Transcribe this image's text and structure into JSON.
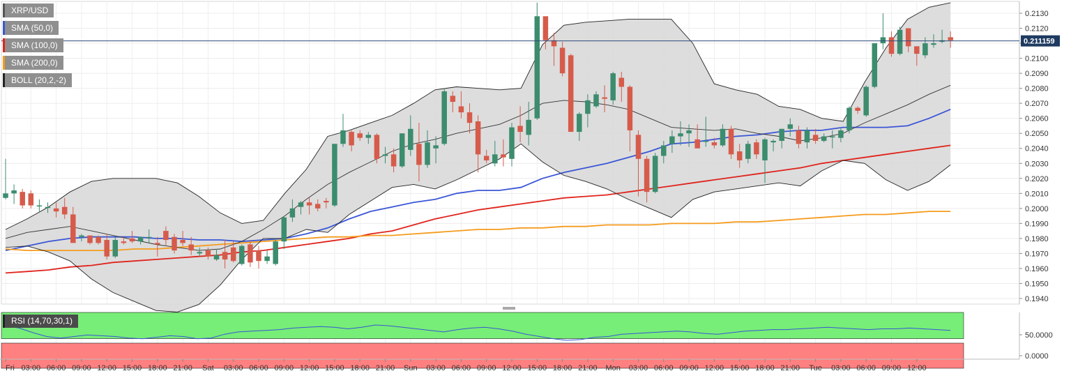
{
  "chart_data": [
    {
      "type": "candlestick",
      "title": "XRP/USD",
      "legend": [
        {
          "label": "XRP/USD",
          "color": "#555555"
        },
        {
          "label": "SMA (50,0)",
          "color": "#3a56d6"
        },
        {
          "label": "SMA (100,0)",
          "color": "#e0231c"
        },
        {
          "label": "SMA (200,0)",
          "color": "#f59b1d"
        },
        {
          "label": "BOLL (20,2,-2)",
          "color": "#222222"
        }
      ],
      "colors": {
        "up": "#3c8c6e",
        "down": "#d65b4a",
        "band_fill": "#d9d9d9"
      },
      "last_price": "0.211159",
      "ylim": [
        0.1935,
        0.2137
      ],
      "y_ticks": [
        "0.2130",
        "0.2120",
        "0.2110",
        "0.2100",
        "0.2090",
        "0.2080",
        "0.2070",
        "0.2060",
        "0.2050",
        "0.2040",
        "0.2030",
        "0.2020",
        "0.2010",
        "0.2000",
        "0.1990",
        "0.1980",
        "0.1970",
        "0.1960",
        "0.1950",
        "0.1940"
      ],
      "x_labels": [
        "Fri",
        "03:00",
        "06:00",
        "09:00",
        "12:00",
        "15:00",
        "18:00",
        "21:00",
        "Sat",
        "03:00",
        "06:00",
        "09:00",
        "12:00",
        "15:00",
        "18:00",
        "21:00",
        "Sun",
        "03:00",
        "06:00",
        "09:00",
        "12:00",
        "15:00",
        "18:00",
        "21:00",
        "Mon",
        "03:00",
        "06:00",
        "09:00",
        "12:00",
        "15:00",
        "18:00",
        "21:00",
        "Tue",
        "03:00",
        "06:00",
        "09:00",
        "12:00"
      ],
      "time_hours_per_label": 3,
      "candles_ohlc": [
        [
          0.2007,
          0.2033,
          0.2006,
          0.201
        ],
        [
          0.201,
          0.2016,
          0.2003,
          0.2012
        ],
        [
          0.2011,
          0.2013,
          0.2,
          0.2002
        ],
        [
          0.201,
          0.2012,
          0.2,
          0.2002
        ],
        [
          0.2002,
          0.2006,
          0.1998,
          0.2002
        ],
        [
          0.2001,
          0.2004,
          0.1997,
          0.2001
        ],
        [
          0.2,
          0.2004,
          0.1994,
          0.1998
        ],
        [
          0.2001,
          0.2007,
          0.1993,
          0.1996
        ],
        [
          0.1996,
          0.2001,
          0.1983,
          0.1977
        ],
        [
          0.1981,
          0.1983,
          0.1978,
          0.1982
        ],
        [
          0.1982,
          0.1982,
          0.1976,
          0.1977
        ],
        [
          0.1981,
          0.1982,
          0.1976,
          0.1977
        ],
        [
          0.1979,
          0.1983,
          0.1966,
          0.1968
        ],
        [
          0.1968,
          0.1981,
          0.1967,
          0.1979
        ],
        [
          0.1978,
          0.1981,
          0.1976,
          0.1977
        ],
        [
          0.198,
          0.1985,
          0.1977,
          0.1978
        ],
        [
          0.1978,
          0.198,
          0.1976,
          0.1981
        ],
        [
          0.1981,
          0.1986,
          0.1977,
          0.1981
        ],
        [
          0.1977,
          0.1981,
          0.1968,
          0.1976
        ],
        [
          0.1985,
          0.1988,
          0.1975,
          0.1979
        ],
        [
          0.1981,
          0.1983,
          0.197,
          0.1972
        ],
        [
          0.1979,
          0.1985,
          0.1975,
          0.1977
        ],
        [
          0.1976,
          0.1981,
          0.1969,
          0.1972
        ],
        [
          0.197,
          0.1974,
          0.1968,
          0.1971
        ],
        [
          0.1972,
          0.1974,
          0.1966,
          0.1968
        ],
        [
          0.1966,
          0.1973,
          0.1965,
          0.1969
        ],
        [
          0.1971,
          0.1979,
          0.196,
          0.1966
        ],
        [
          0.1974,
          0.1978,
          0.1964,
          0.1965
        ],
        [
          0.1963,
          0.1976,
          0.1962,
          0.1975
        ],
        [
          0.1976,
          0.1979,
          0.1961,
          0.1964
        ],
        [
          0.1972,
          0.1975,
          0.196,
          0.1965
        ],
        [
          0.1965,
          0.1972,
          0.1963,
          0.1968
        ],
        [
          0.1963,
          0.198,
          0.1962,
          0.1978
        ],
        [
          0.1978,
          0.1995,
          0.1973,
          0.1994
        ],
        [
          0.1994,
          0.2006,
          0.1991,
          0.2
        ],
        [
          0.2001,
          0.2005,
          0.1996,
          0.2004
        ],
        [
          0.2004,
          0.2007,
          0.1996,
          0.2002
        ],
        [
          0.2003,
          0.2006,
          0.1998,
          0.2
        ],
        [
          0.2005,
          0.2007,
          0.2,
          0.2004
        ],
        [
          0.2002,
          0.2043,
          0.2001,
          0.2043
        ],
        [
          0.2043,
          0.2063,
          0.2041,
          0.2052
        ],
        [
          0.2051,
          0.2052,
          0.2038,
          0.2042
        ],
        [
          0.205,
          0.2052,
          0.2045,
          0.2047
        ],
        [
          0.2047,
          0.2051,
          0.2043,
          0.2049
        ],
        [
          0.2049,
          0.205,
          0.203,
          0.2033
        ],
        [
          0.2035,
          0.2041,
          0.203,
          0.2036
        ],
        [
          0.2036,
          0.204,
          0.2024,
          0.2028
        ],
        [
          0.2028,
          0.205,
          0.2027,
          0.205
        ],
        [
          0.2039,
          0.2062,
          0.2035,
          0.2053
        ],
        [
          0.2043,
          0.2057,
          0.2018,
          0.2029
        ],
        [
          0.2029,
          0.2052,
          0.2027,
          0.2044
        ],
        [
          0.204,
          0.2048,
          0.203,
          0.2042
        ],
        [
          0.2043,
          0.208,
          0.2042,
          0.2078
        ],
        [
          0.2075,
          0.2078,
          0.2064,
          0.2071
        ],
        [
          0.2068,
          0.2078,
          0.206,
          0.2064
        ],
        [
          0.2064,
          0.207,
          0.205,
          0.2057
        ],
        [
          0.2058,
          0.2062,
          0.2024,
          0.2036
        ],
        [
          0.2035,
          0.2039,
          0.203,
          0.2032
        ],
        [
          0.203,
          0.2045,
          0.2028,
          0.2036
        ],
        [
          0.2036,
          0.2046,
          0.2028,
          0.2034
        ],
        [
          0.2033,
          0.2057,
          0.2028,
          0.2054
        ],
        [
          0.2055,
          0.2068,
          0.2044,
          0.2051
        ],
        [
          0.2049,
          0.2071,
          0.2042,
          0.2059
        ],
        [
          0.206,
          0.2137,
          0.2059,
          0.2128
        ],
        [
          0.2128,
          0.2128,
          0.2106,
          0.2112
        ],
        [
          0.2112,
          0.2117,
          0.2095,
          0.2108
        ],
        [
          0.2107,
          0.2111,
          0.2088,
          0.209
        ],
        [
          0.2102,
          0.2103,
          0.2051,
          0.2051
        ],
        [
          0.2051,
          0.2064,
          0.2045,
          0.2063
        ],
        [
          0.2063,
          0.2076,
          0.2054,
          0.2072
        ],
        [
          0.2068,
          0.2078,
          0.2067,
          0.2076
        ],
        [
          0.2074,
          0.2082,
          0.2064,
          0.2073
        ],
        [
          0.2072,
          0.2091,
          0.2069,
          0.209
        ],
        [
          0.2087,
          0.2091,
          0.2071,
          0.2081
        ],
        [
          0.2081,
          0.2082,
          0.2038,
          0.2052
        ],
        [
          0.2049,
          0.2052,
          0.2008,
          0.2033
        ],
        [
          0.2033,
          0.2035,
          0.2004,
          0.2011
        ],
        [
          0.2011,
          0.2037,
          0.201,
          0.2035
        ],
        [
          0.2035,
          0.2045,
          0.203,
          0.2042
        ],
        [
          0.2043,
          0.2052,
          0.2037,
          0.2048
        ],
        [
          0.2048,
          0.2058,
          0.2042,
          0.205
        ],
        [
          0.205,
          0.2056,
          0.2041,
          0.2052
        ],
        [
          0.2046,
          0.2056,
          0.204,
          0.204
        ],
        [
          0.2045,
          0.2061,
          0.2041,
          0.2045
        ],
        [
          0.2044,
          0.2047,
          0.204,
          0.2042
        ],
        [
          0.2042,
          0.2056,
          0.2041,
          0.2053
        ],
        [
          0.2053,
          0.2055,
          0.2033,
          0.2036
        ],
        [
          0.2038,
          0.2043,
          0.2027,
          0.2032
        ],
        [
          0.2033,
          0.2045,
          0.203,
          0.2043
        ],
        [
          0.2044,
          0.2046,
          0.2033,
          0.2036
        ],
        [
          0.2032,
          0.2047,
          0.2017,
          0.2046
        ],
        [
          0.2044,
          0.2046,
          0.2038,
          0.2045
        ],
        [
          0.2045,
          0.2053,
          0.204,
          0.2053
        ],
        [
          0.2053,
          0.206,
          0.2048,
          0.2056
        ],
        [
          0.2052,
          0.2055,
          0.204,
          0.2043
        ],
        [
          0.2044,
          0.2054,
          0.204,
          0.2052
        ],
        [
          0.2049,
          0.2053,
          0.2043,
          0.2045
        ],
        [
          0.2045,
          0.205,
          0.2044,
          0.2048
        ],
        [
          0.2048,
          0.2052,
          0.204,
          0.2048
        ],
        [
          0.2047,
          0.2054,
          0.2044,
          0.2052
        ],
        [
          0.2052,
          0.2068,
          0.205,
          0.2067
        ],
        [
          0.2067,
          0.2068,
          0.2063,
          0.2065
        ],
        [
          0.2062,
          0.2082,
          0.2061,
          0.2081
        ],
        [
          0.2081,
          0.211,
          0.208,
          0.211
        ],
        [
          0.211,
          0.213,
          0.2106,
          0.2114
        ],
        [
          0.2114,
          0.2118,
          0.2101,
          0.2103
        ],
        [
          0.2103,
          0.2121,
          0.2102,
          0.2119
        ],
        [
          0.212,
          0.212,
          0.2104,
          0.2108
        ],
        [
          0.2108,
          0.2108,
          0.2095,
          0.2103
        ],
        [
          0.2102,
          0.2114,
          0.21,
          0.211
        ],
        [
          0.2109,
          0.2116,
          0.2107,
          0.211
        ],
        [
          0.2111,
          0.2119,
          0.211,
          0.2112
        ],
        [
          0.2114,
          0.2118,
          0.2107,
          0.2112
        ]
      ],
      "series": [
        {
          "name": "SMA (50,0)",
          "color": "#3a56d6",
          "values": [
            0.1972,
            0.1975,
            0.1978,
            0.198,
            0.1981,
            0.1981,
            0.1981,
            0.198,
            0.198,
            0.1979,
            0.1979,
            0.1978,
            0.1979,
            0.198,
            0.1983,
            0.1987,
            0.1993,
            0.1998,
            0.2001,
            0.2004,
            0.2006,
            0.201,
            0.2012,
            0.2012,
            0.2014,
            0.202,
            0.2024,
            0.2027,
            0.203,
            0.2034,
            0.2038,
            0.2043,
            0.2044,
            0.2046,
            0.2048,
            0.2049,
            0.2051,
            0.2052,
            0.2052,
            0.2054,
            0.2054,
            0.2054,
            0.2055,
            0.206,
            0.2066
          ]
        },
        {
          "name": "SMA (100,0)",
          "color": "#e0231c",
          "values": [
            0.1957,
            0.1958,
            0.1959,
            0.1961,
            0.1962,
            0.1964,
            0.1965,
            0.1966,
            0.1967,
            0.1968,
            0.1969,
            0.1971,
            0.1972,
            0.1974,
            0.1976,
            0.1978,
            0.198,
            0.1983,
            0.1985,
            0.1989,
            0.1993,
            0.1996,
            0.1999,
            0.2001,
            0.2003,
            0.2005,
            0.2007,
            0.2008,
            0.2009,
            0.2011,
            0.2013,
            0.2015,
            0.2017,
            0.2019,
            0.2021,
            0.2023,
            0.2025,
            0.2027,
            0.203,
            0.2032,
            0.2034,
            0.2036,
            0.2038,
            0.204,
            0.2042
          ]
        },
        {
          "name": "SMA (200,0)",
          "color": "#f59b1d",
          "values": [
            0.1973,
            0.1972,
            0.1972,
            0.1972,
            0.1972,
            0.1972,
            0.1973,
            0.1973,
            0.1974,
            0.1975,
            0.1976,
            0.1977,
            0.1978,
            0.1979,
            0.198,
            0.1981,
            0.1981,
            0.1982,
            0.1982,
            0.1983,
            0.1984,
            0.1985,
            0.1986,
            0.1986,
            0.1987,
            0.1987,
            0.1988,
            0.1988,
            0.1989,
            0.1989,
            0.1989,
            0.199,
            0.199,
            0.199,
            0.1991,
            0.1991,
            0.1992,
            0.1993,
            0.1994,
            0.1995,
            0.1996,
            0.1996,
            0.1997,
            0.1998,
            0.1998
          ]
        },
        {
          "name": "BOLL upper",
          "color": "#222222",
          "values": [
            0.1986,
            0.1993,
            0.2001,
            0.2011,
            0.2018,
            0.202,
            0.202,
            0.202,
            0.2017,
            0.2008,
            0.1997,
            0.199,
            0.1992,
            0.201,
            0.2026,
            0.2048,
            0.2052,
            0.2057,
            0.2062,
            0.207,
            0.2079,
            0.2081,
            0.208,
            0.2079,
            0.208,
            0.2109,
            0.2122,
            0.2124,
            0.2125,
            0.2126,
            0.2126,
            0.2126,
            0.211,
            0.2083,
            0.2079,
            0.2076,
            0.2068,
            0.2066,
            0.206,
            0.2058,
            0.2084,
            0.2107,
            0.2126,
            0.2134,
            0.2137
          ]
        },
        {
          "name": "BOLL middle",
          "color": "#333333",
          "values": [
            0.198,
            0.1984,
            0.1986,
            0.1988,
            0.1985,
            0.1982,
            0.1979,
            0.1976,
            0.1974,
            0.1972,
            0.1973,
            0.1978,
            0.1986,
            0.1995,
            0.2006,
            0.2016,
            0.2024,
            0.2031,
            0.2038,
            0.2043,
            0.2046,
            0.205,
            0.2053,
            0.2056,
            0.2062,
            0.207,
            0.2072,
            0.2071,
            0.2069,
            0.2066,
            0.206,
            0.2054,
            0.2053,
            0.2052,
            0.2053,
            0.205,
            0.2048,
            0.2045,
            0.2047,
            0.205,
            0.2057,
            0.2063,
            0.2069,
            0.2076,
            0.2082
          ]
        },
        {
          "name": "BOLL lower",
          "color": "#222222",
          "values": [
            0.1974,
            0.1975,
            0.1971,
            0.1965,
            0.1953,
            0.1944,
            0.1938,
            0.1932,
            0.1931,
            0.1936,
            0.1949,
            0.1966,
            0.198,
            0.198,
            0.1986,
            0.1984,
            0.1996,
            0.2005,
            0.2014,
            0.2016,
            0.2013,
            0.2019,
            0.2026,
            0.2033,
            0.2043,
            0.2031,
            0.2022,
            0.2018,
            0.2013,
            0.2006,
            0.2,
            0.1994,
            0.2006,
            0.2011,
            0.2013,
            0.2015,
            0.2017,
            0.2015,
            0.2025,
            0.2032,
            0.203,
            0.2019,
            0.2012,
            0.2018,
            0.2029
          ]
        }
      ]
    },
    {
      "type": "line",
      "title": "RSI (14,70,30,1)",
      "ylim": [
        0,
        100
      ],
      "y_ticks": [
        "50.0000",
        "0.0000"
      ],
      "overbought": 70,
      "oversold": 30,
      "zone_colors": {
        "overbought": "#77ee77",
        "oversold": "#ff8080"
      },
      "line_color": "#3a56d6",
      "values": [
        74,
        71,
        65,
        60,
        58,
        60,
        62,
        61,
        60,
        58,
        57,
        59,
        61,
        60,
        57,
        58,
        63,
        66,
        67,
        68,
        69,
        71,
        72,
        73,
        72,
        70,
        72,
        75,
        74,
        72,
        70,
        68,
        66,
        69,
        71,
        72,
        70,
        67,
        63,
        60,
        57,
        55,
        56,
        59,
        60,
        63,
        64,
        65,
        66,
        67,
        66,
        64,
        63,
        65,
        67,
        68,
        69,
        69,
        70,
        71,
        72,
        71,
        70,
        69,
        70,
        70,
        71,
        70,
        69,
        68
      ]
    }
  ]
}
